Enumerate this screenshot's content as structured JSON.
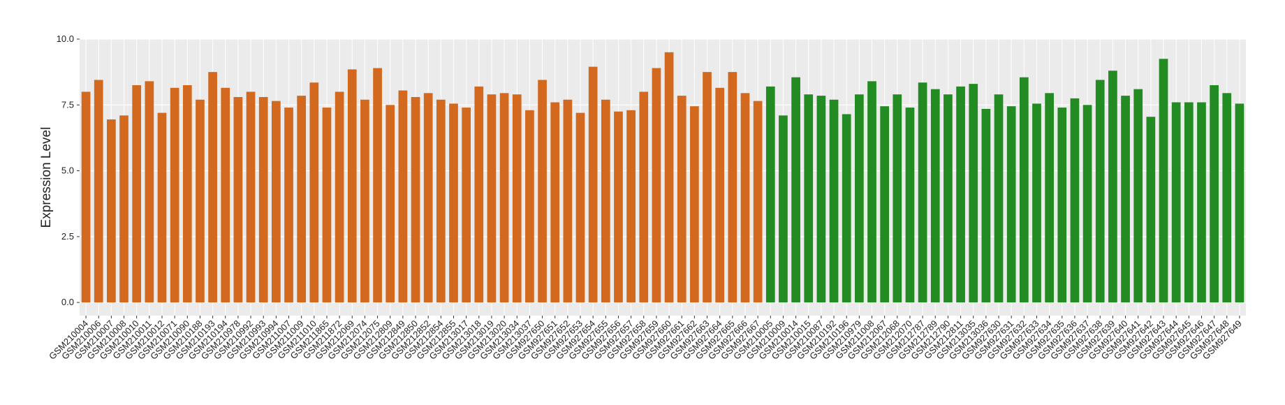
{
  "chart_data": {
    "type": "bar",
    "y_label": "Expression Level",
    "categories": [
      "GSM210004",
      "GSM210006",
      "GSM210007",
      "GSM210008",
      "GSM210010",
      "GSM210011",
      "GSM210012",
      "GSM210071",
      "GSM210090",
      "GSM210188",
      "GSM210193",
      "GSM210194",
      "GSM210978",
      "GSM210992",
      "GSM210993",
      "GSM210994",
      "GSM211007",
      "GSM211009",
      "GSM211010",
      "GSM211865",
      "GSM211872",
      "GSM212069",
      "GSM212074",
      "GSM212075",
      "GSM212809",
      "GSM212849",
      "GSM212850",
      "GSM212852",
      "GSM212854",
      "GSM212855",
      "GSM213017",
      "GSM213018",
      "GSM213019",
      "GSM213020",
      "GSM213034",
      "GSM213037",
      "GSM927650",
      "GSM927651",
      "GSM927652",
      "GSM927653",
      "GSM927654",
      "GSM927655",
      "GSM927656",
      "GSM927657",
      "GSM927658",
      "GSM927659",
      "GSM927660",
      "GSM927661",
      "GSM927662",
      "GSM927663",
      "GSM927664",
      "GSM927665",
      "GSM927666",
      "GSM927667",
      "GSM210005",
      "GSM210009",
      "GSM210014",
      "GSM210015",
      "GSM210087",
      "GSM210192",
      "GSM210196",
      "GSM210979",
      "GSM211008",
      "GSM212067",
      "GSM212068",
      "GSM212070",
      "GSM212787",
      "GSM212789",
      "GSM212790",
      "GSM212811",
      "GSM213035",
      "GSM213036",
      "GSM927630",
      "GSM927631",
      "GSM927632",
      "GSM927633",
      "GSM927634",
      "GSM927635",
      "GSM927636",
      "GSM927637",
      "GSM927638",
      "GSM927639",
      "GSM927640",
      "GSM927641",
      "GSM927642",
      "GSM927643",
      "GSM927644",
      "GSM927645",
      "GSM927646",
      "GSM927647",
      "GSM927648",
      "GSM927649"
    ],
    "series": [
      {
        "color": "#d2691e",
        "values": [
          8.0,
          8.45,
          6.95,
          7.1,
          8.25,
          8.4,
          7.2,
          8.15,
          8.25,
          7.7,
          8.75,
          8.15,
          7.8,
          8.0,
          7.8,
          7.65,
          7.4,
          7.85,
          8.35,
          7.4,
          8.0,
          8.85,
          7.7,
          8.9,
          7.5,
          8.05,
          7.8,
          7.95,
          7.7,
          7.55,
          7.4,
          8.2,
          7.9,
          7.95,
          7.9,
          7.3,
          8.45,
          7.6,
          7.7,
          7.2,
          8.95,
          7.7,
          7.25,
          7.3,
          8.0,
          8.9,
          9.5,
          7.85,
          7.45,
          8.75,
          8.15,
          8.75,
          7.95,
          7.65,
          null,
          null,
          null,
          null,
          null,
          null,
          null,
          null,
          null,
          null,
          null,
          null,
          null,
          null,
          null,
          null,
          null,
          null,
          null,
          null,
          null,
          null,
          null,
          null,
          null,
          null,
          null,
          null,
          null,
          null,
          null,
          null,
          null,
          null,
          null,
          null,
          null,
          null
        ]
      },
      {
        "color": "#228b22",
        "values": [
          null,
          null,
          null,
          null,
          null,
          null,
          null,
          null,
          null,
          null,
          null,
          null,
          null,
          null,
          null,
          null,
          null,
          null,
          null,
          null,
          null,
          null,
          null,
          null,
          null,
          null,
          null,
          null,
          null,
          null,
          null,
          null,
          null,
          null,
          null,
          null,
          null,
          null,
          null,
          null,
          null,
          null,
          null,
          null,
          null,
          null,
          null,
          null,
          null,
          null,
          null,
          null,
          null,
          null,
          8.2,
          7.1,
          8.55,
          7.9,
          7.85,
          7.7,
          7.15,
          7.9,
          8.4,
          7.45,
          7.9,
          7.4,
          8.35,
          8.1,
          7.9,
          8.2,
          8.3,
          7.35,
          7.9,
          7.45,
          8.55,
          7.55,
          7.95,
          7.4,
          7.75,
          7.5,
          8.45,
          8.8,
          7.85,
          8.1,
          7.05,
          9.25,
          7.6,
          7.6,
          7.6,
          8.25,
          7.95,
          7.55
        ]
      }
    ],
    "ylim": [
      -0.5,
      10.0
    ],
    "yticks": [
      {
        "value": 0,
        "label": "0.0"
      },
      {
        "value": 2.5,
        "label": "2.5"
      },
      {
        "value": 5,
        "label": "5.0"
      },
      {
        "value": 7.5,
        "label": "7.5"
      },
      {
        "value": 10,
        "label": "10.0"
      }
    ],
    "grid": true
  }
}
